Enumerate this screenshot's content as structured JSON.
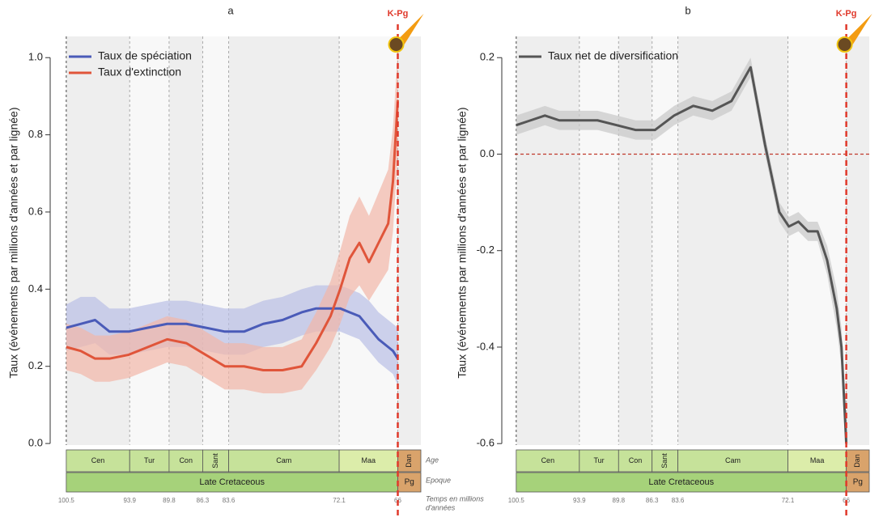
{
  "chart_data": [
    {
      "type": "line",
      "title": "a",
      "ylabel": "Taux (événements par millions d'années et par lignée)",
      "x": [
        100.5,
        99,
        97.5,
        96,
        94,
        92,
        90,
        88,
        86,
        84,
        82,
        80,
        78,
        76,
        74.5,
        73,
        72,
        71,
        70,
        69,
        68,
        67,
        66.5,
        66
      ],
      "series": [
        {
          "name": "Taux de spéciation",
          "color": "#4a5bb8",
          "band_color": "#b9bfe6",
          "values": [
            0.3,
            0.31,
            0.32,
            0.29,
            0.29,
            0.3,
            0.31,
            0.31,
            0.3,
            0.29,
            0.29,
            0.31,
            0.32,
            0.34,
            0.35,
            0.35,
            0.35,
            0.34,
            0.33,
            0.3,
            0.27,
            0.25,
            0.24,
            0.22
          ],
          "upper": [
            0.36,
            0.38,
            0.38,
            0.35,
            0.35,
            0.36,
            0.37,
            0.37,
            0.36,
            0.35,
            0.35,
            0.37,
            0.38,
            0.4,
            0.41,
            0.41,
            0.41,
            0.4,
            0.39,
            0.37,
            0.34,
            0.32,
            0.31,
            0.3
          ],
          "lower": [
            0.24,
            0.25,
            0.26,
            0.23,
            0.23,
            0.24,
            0.25,
            0.25,
            0.24,
            0.23,
            0.23,
            0.25,
            0.26,
            0.28,
            0.29,
            0.29,
            0.29,
            0.28,
            0.27,
            0.24,
            0.21,
            0.19,
            0.18,
            0.15
          ]
        },
        {
          "name": "Taux d'extinction",
          "color": "#e0553a",
          "band_color": "#f2b7a8",
          "values": [
            0.25,
            0.24,
            0.22,
            0.22,
            0.23,
            0.25,
            0.27,
            0.26,
            0.23,
            0.2,
            0.2,
            0.19,
            0.19,
            0.2,
            0.26,
            0.33,
            0.4,
            0.48,
            0.52,
            0.47,
            0.52,
            0.57,
            0.68,
            0.89
          ],
          "upper": [
            0.31,
            0.3,
            0.28,
            0.28,
            0.29,
            0.31,
            0.33,
            0.32,
            0.29,
            0.26,
            0.26,
            0.25,
            0.25,
            0.27,
            0.34,
            0.42,
            0.5,
            0.59,
            0.64,
            0.59,
            0.65,
            0.71,
            0.82,
            1.02
          ],
          "lower": [
            0.19,
            0.18,
            0.16,
            0.16,
            0.17,
            0.19,
            0.21,
            0.2,
            0.17,
            0.14,
            0.14,
            0.13,
            0.13,
            0.14,
            0.19,
            0.25,
            0.31,
            0.38,
            0.41,
            0.37,
            0.41,
            0.45,
            0.55,
            0.75
          ]
        }
      ],
      "xlim": [
        101.5,
        63.6
      ],
      "xticks": [
        100.5,
        93.9,
        89.8,
        86.3,
        83.6,
        72.1,
        66
      ],
      "ylim": [
        -0.004,
        1.055
      ],
      "yticks": [
        {
          "value": 0,
          "label": "0.0"
        },
        0.2,
        0.4,
        0.6,
        0.8,
        {
          "value": 1,
          "label": "1.0"
        }
      ],
      "legend": "upper left",
      "stages": [
        "Cen",
        "Tur",
        "Con",
        "Sant",
        "Cam",
        "Maa",
        "Dan"
      ],
      "epochs": [
        "Late Cretaceous",
        "Pg"
      ],
      "timescale_labels": [
        "Age",
        "Epoque",
        "Temps en millions",
        "d'années"
      ],
      "event_label": "K-Pg",
      "event_x": 66
    },
    {
      "type": "line",
      "title": "b",
      "ylabel": "Taux (événements par millions d'années et par lignée)",
      "x": [
        100.5,
        99,
        97.5,
        96,
        94,
        92,
        90,
        88,
        86,
        84,
        82,
        80,
        78,
        76,
        74.5,
        73,
        72,
        71,
        70,
        69,
        68,
        67,
        66.5,
        66
      ],
      "series": [
        {
          "name": "Taux net de diversification",
          "color": "#555555",
          "band_color": "#c8c8c8",
          "values": [
            0.06,
            0.07,
            0.08,
            0.07,
            0.07,
            0.07,
            0.06,
            0.05,
            0.05,
            0.08,
            0.1,
            0.09,
            0.11,
            0.18,
            0.02,
            -0.12,
            -0.15,
            -0.14,
            -0.16,
            -0.16,
            -0.22,
            -0.32,
            -0.4,
            -0.6
          ],
          "upper": [
            0.08,
            0.09,
            0.1,
            0.09,
            0.09,
            0.09,
            0.08,
            0.07,
            0.07,
            0.1,
            0.12,
            0.11,
            0.13,
            0.2,
            0.04,
            -0.1,
            -0.13,
            -0.12,
            -0.14,
            -0.14,
            -0.19,
            -0.28,
            -0.36,
            -0.56
          ],
          "lower": [
            0.04,
            0.05,
            0.06,
            0.05,
            0.05,
            0.05,
            0.04,
            0.03,
            0.03,
            0.06,
            0.08,
            0.07,
            0.09,
            0.16,
            0.0,
            -0.14,
            -0.17,
            -0.16,
            -0.18,
            -0.18,
            -0.25,
            -0.36,
            -0.44,
            -0.6
          ]
        }
      ],
      "xlim": [
        101.5,
        63.6
      ],
      "xticks": [
        100.5,
        93.9,
        89.8,
        86.3,
        83.6,
        72.1,
        66
      ],
      "ylim": [
        -0.603,
        0.244
      ],
      "yticks": [
        0.2,
        {
          "value": 0,
          "label": "0.0"
        },
        -0.2,
        -0.4,
        -0.6
      ],
      "hline": 0,
      "legend": "upper left",
      "stages": [
        "Cen",
        "Tur",
        "Con",
        "Sant",
        "Cam",
        "Maa",
        "Dan"
      ],
      "epochs": [
        "Late Cretaceous",
        "Pg"
      ],
      "event_label": "K-Pg",
      "event_x": 66
    }
  ]
}
